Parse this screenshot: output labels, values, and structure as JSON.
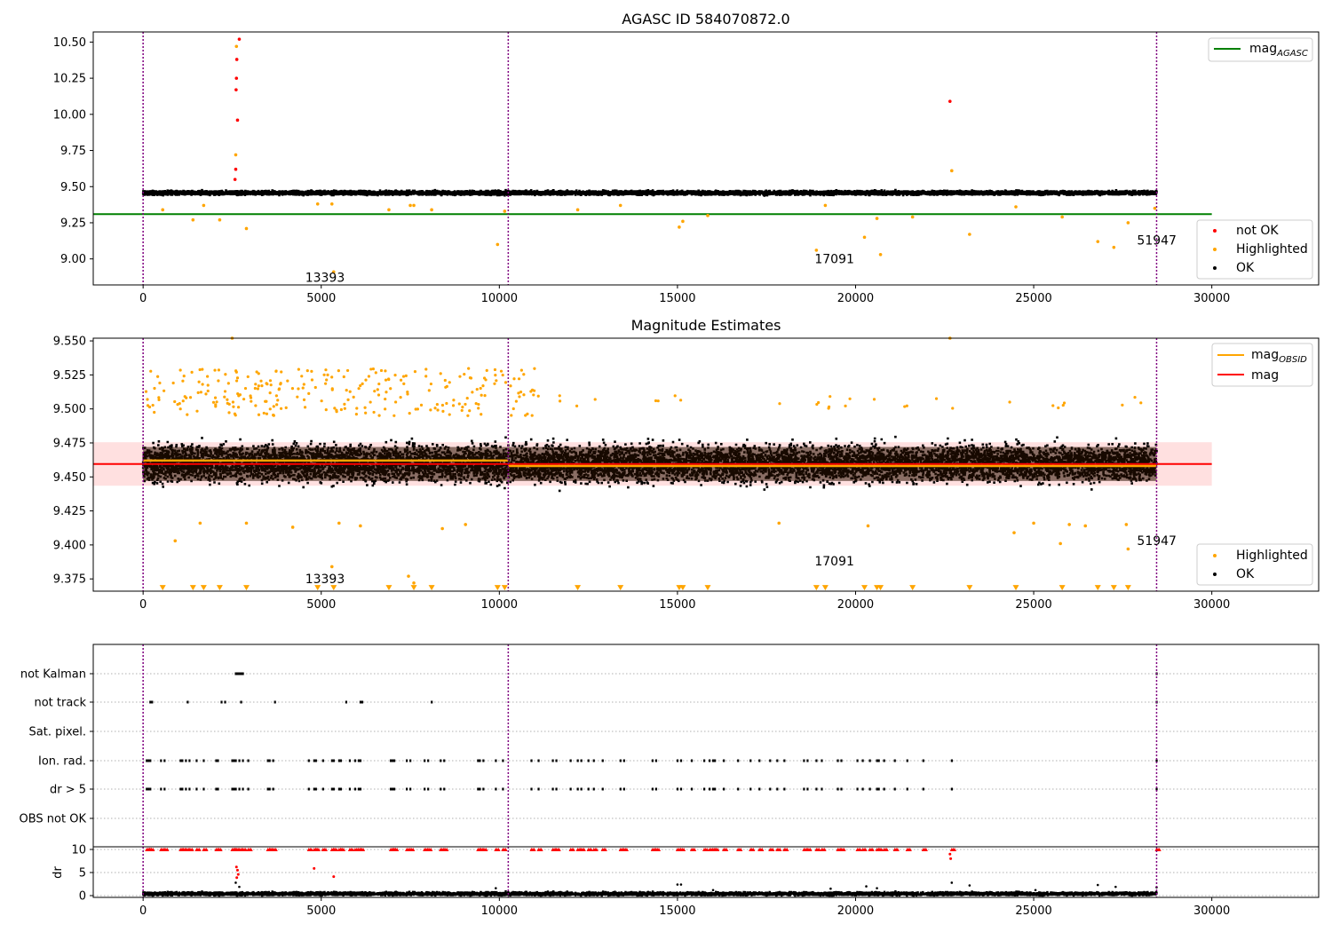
{
  "chart_data": [
    {
      "type": "scatter",
      "title": "AGASC ID 584070872.0",
      "xlim": [
        -1400,
        33000
      ],
      "ylim": [
        8.82,
        10.57
      ],
      "xticks": [
        0,
        5000,
        10000,
        15000,
        20000,
        25000,
        30000
      ],
      "yticks": [
        9.0,
        9.25,
        9.5,
        9.75,
        10.0,
        10.25,
        10.5
      ],
      "ytick_labels": [
        "9.00",
        "9.25",
        "9.50",
        "9.75",
        "10.00",
        "10.25",
        "10.50"
      ],
      "vlines": [
        0,
        10250,
        28450
      ],
      "reference_line": {
        "name": "mag_AGASC",
        "label_main": "mag",
        "label_sub": "AGASC",
        "y": 9.31,
        "x_range": [
          -1400,
          30000
        ],
        "color": "#008000"
      },
      "band": {
        "center": 9.463,
        "half_width": 0.013
      },
      "annotations": [
        {
          "text": "13393",
          "x": 4550,
          "y": 8.84
        },
        {
          "text": "17091",
          "x": 18850,
          "y": 8.97
        },
        {
          "text": "51947",
          "x": 27900,
          "y": 9.1
        }
      ],
      "legend_position": "top-right",
      "legend_top": [
        {
          "label_main": "mag",
          "label_sub": "AGASC",
          "color": "#008000",
          "kind": "line"
        }
      ],
      "legend_bottom": [
        {
          "label": "not OK",
          "color": "#ff0000",
          "kind": "dot"
        },
        {
          "label": "Highlighted",
          "color": "#ffa500",
          "kind": "dot"
        },
        {
          "label": "OK",
          "color": "#000000",
          "kind": "dot"
        }
      ],
      "series": [
        {
          "name": "not OK",
          "color": "#ff0000",
          "points": [
            [
              2630,
              10.38
            ],
            [
              2620,
              10.25
            ],
            [
              2610,
              10.17
            ],
            [
              2650,
              9.96
            ],
            [
              2700,
              10.52
            ],
            [
              2600,
              9.62
            ],
            [
              2580,
              9.55
            ],
            [
              22650,
              10.09
            ]
          ]
        },
        {
          "name": "Highlighted",
          "color": "#ffa500",
          "points": [
            [
              2620,
              10.47
            ],
            [
              2600,
              9.72
            ],
            [
              550,
              9.34
            ],
            [
              1400,
              9.27
            ],
            [
              1700,
              9.37
            ],
            [
              2150,
              9.27
            ],
            [
              2900,
              9.21
            ],
            [
              4900,
              9.38
            ],
            [
              5300,
              9.38
            ],
            [
              5350,
              8.91
            ],
            [
              6900,
              9.34
            ],
            [
              7500,
              9.37
            ],
            [
              7600,
              9.37
            ],
            [
              8100,
              9.34
            ],
            [
              9950,
              9.1
            ],
            [
              10150,
              9.33
            ],
            [
              12200,
              9.34
            ],
            [
              13400,
              9.37
            ],
            [
              15050,
              9.22
            ],
            [
              15150,
              9.26
            ],
            [
              15850,
              9.3
            ],
            [
              18900,
              9.06
            ],
            [
              19150,
              9.37
            ],
            [
              20250,
              9.15
            ],
            [
              20600,
              9.28
            ],
            [
              20700,
              9.03
            ],
            [
              21600,
              9.29
            ],
            [
              22700,
              9.61
            ],
            [
              23200,
              9.17
            ],
            [
              24500,
              9.36
            ],
            [
              25800,
              9.29
            ],
            [
              26800,
              9.12
            ],
            [
              27250,
              9.08
            ],
            [
              27650,
              9.25
            ],
            [
              28400,
              9.35
            ]
          ]
        }
      ],
      "ok_band": {
        "name": "OK",
        "x_range": [
          0,
          28450
        ],
        "center": 9.457,
        "spread": 0.022
      }
    },
    {
      "type": "scatter",
      "title": "Magnitude Estimates",
      "xlim": [
        -1400,
        33000
      ],
      "ylim": [
        9.366,
        9.552
      ],
      "xticks": [
        0,
        5000,
        10000,
        15000,
        20000,
        25000,
        30000
      ],
      "yticks": [
        9.375,
        9.4,
        9.425,
        9.45,
        9.475,
        9.5,
        9.525,
        9.55
      ],
      "ytick_labels": [
        "9.375",
        "9.400",
        "9.425",
        "9.450",
        "9.475",
        "9.500",
        "9.525",
        "9.550"
      ],
      "vlines": [
        0,
        10250,
        28450
      ],
      "band": {
        "center": 9.4595,
        "half_width": 0.016,
        "x_range": [
          -1400,
          30000
        ]
      },
      "mag_line": {
        "name": "mag",
        "y": 9.4595,
        "x_range": [
          -1400,
          30000
        ],
        "color": "#ff0000"
      },
      "mag_obsid": {
        "name": "mag_OBSID",
        "color": "#ffa500",
        "segments": [
          [
            0,
            10250,
            9.462
          ],
          [
            10250,
            28450,
            9.458
          ]
        ]
      },
      "annotations": [
        {
          "text": "13393",
          "x": 4550,
          "y": 9.372
        },
        {
          "text": "17091",
          "x": 18850,
          "y": 9.385
        },
        {
          "text": "51947",
          "x": 27900,
          "y": 9.4
        }
      ],
      "legend_position": "top-right",
      "legend_top": [
        {
          "label_main": "mag",
          "label_sub": "OBSID",
          "color": "#ffa500",
          "kind": "line"
        },
        {
          "label_main": "mag",
          "label_sub": "",
          "color": "#ff0000",
          "kind": "line"
        }
      ],
      "legend_bottom": [
        {
          "label": "Highlighted",
          "color": "#ffa500",
          "kind": "dot"
        },
        {
          "label": "OK",
          "color": "#000000",
          "kind": "dot"
        }
      ],
      "series": [
        {
          "name": "Highlighted",
          "color": "#ffa500",
          "points": [
            [
              2500,
              9.552
            ],
            [
              22650,
              9.552
            ],
            [
              900,
              9.403
            ],
            [
              1600,
              9.416
            ],
            [
              2900,
              9.416
            ],
            [
              4200,
              9.413
            ],
            [
              5300,
              9.384
            ],
            [
              5500,
              9.416
            ],
            [
              6100,
              9.414
            ],
            [
              7450,
              9.377
            ],
            [
              7600,
              9.372
            ],
            [
              8400,
              9.412
            ],
            [
              9050,
              9.415
            ],
            [
              17850,
              9.416
            ],
            [
              20350,
              9.414
            ],
            [
              24450,
              9.409
            ],
            [
              25000,
              9.416
            ],
            [
              25750,
              9.401
            ],
            [
              26000,
              9.415
            ],
            [
              26450,
              9.414
            ],
            [
              27600,
              9.415
            ],
            [
              27650,
              9.397
            ]
          ]
        },
        {
          "name": "Highlighted (below range)",
          "color": "#ffa500",
          "marker": "down-triangle",
          "x": [
            550,
            1400,
            1700,
            2150,
            2900,
            4900,
            5350,
            6900,
            7600,
            8100,
            9950,
            10150,
            12200,
            13400,
            15050,
            15150,
            15850,
            18900,
            19150,
            20250,
            20600,
            20700,
            21600,
            23200,
            24500,
            25800,
            26800,
            27250,
            27650
          ],
          "y": 9.3685
        }
      ],
      "ok_band": {
        "name": "OK",
        "x_range": [
          0,
          28450
        ],
        "center": 9.46,
        "spread": 0.022
      }
    },
    {
      "type": "scatter",
      "xlim": [
        -1400,
        33000
      ],
      "categories": [
        "not Kalman",
        "not track",
        "Sat. pixel.",
        "Ion. rad.",
        "dr > 5",
        "OBS not OK"
      ],
      "flags": {
        "not Kalman": [
          2600,
          2650,
          2700,
          2750,
          2800,
          28450
        ],
        "not track": [
          200,
          250,
          1250,
          2200,
          2300,
          2750,
          3700,
          5700,
          6100,
          6150,
          8100,
          28450
        ],
        "Sat. pixel.": [],
        "Ion. rad.": [
          100,
          150,
          200,
          500,
          600,
          1050,
          1100,
          1200,
          1300,
          1500,
          1700,
          2050,
          2100,
          2500,
          2550,
          2600,
          2700,
          2800,
          2950,
          3500,
          3550,
          3650,
          4650,
          4800,
          4850,
          5050,
          5300,
          5350,
          5500,
          5550,
          5800,
          5950,
          6050,
          6100,
          6950,
          7000,
          7050,
          7400,
          7500,
          7900,
          8000,
          8350,
          8450,
          9400,
          9450,
          9550,
          9900,
          10100,
          10900,
          11100,
          11500,
          11600,
          12000,
          12200,
          12300,
          12500,
          12650,
          12900,
          13400,
          13500,
          14300,
          14400,
          15000,
          15100,
          15400,
          15750,
          15900,
          16000,
          16050,
          16300,
          16700,
          17050,
          17300,
          17600,
          17800,
          18000,
          18550,
          18650,
          18900,
          19050,
          19500,
          19600,
          20050,
          20200,
          20400,
          20600,
          20650,
          20800,
          21100,
          21450,
          21900,
          22700,
          28450
        ],
        "dr > 5": [
          100,
          150,
          200,
          500,
          600,
          1050,
          1100,
          1200,
          1300,
          1500,
          1700,
          2050,
          2100,
          2500,
          2550,
          2600,
          2700,
          2800,
          2950,
          3500,
          3550,
          3650,
          4650,
          4800,
          4850,
          5050,
          5300,
          5350,
          5500,
          5550,
          5800,
          5950,
          6050,
          6100,
          6950,
          7000,
          7050,
          7400,
          7500,
          7900,
          8000,
          8350,
          8450,
          9400,
          9450,
          9550,
          9900,
          10100,
          10900,
          11100,
          11500,
          11600,
          12000,
          12200,
          12300,
          12500,
          12650,
          12900,
          13400,
          13500,
          14300,
          14400,
          15000,
          15100,
          15400,
          15750,
          15900,
          16000,
          16050,
          16300,
          16700,
          17050,
          17300,
          17600,
          17800,
          18000,
          18550,
          18650,
          18900,
          19050,
          19500,
          19600,
          20050,
          20200,
          20400,
          20600,
          20650,
          20800,
          21100,
          21450,
          21900,
          22700,
          28450
        ],
        "OBS not OK": []
      },
      "vlines": [
        0,
        10250,
        28450
      ]
    },
    {
      "type": "scatter",
      "xlim": [
        -1400,
        33000
      ],
      "ylim": [
        -0.5,
        10.5
      ],
      "ylabel": "dr",
      "xticks": [
        0,
        5000,
        10000,
        15000,
        20000,
        25000,
        30000
      ],
      "yticks": [
        0,
        5,
        10
      ],
      "capped_value": 10,
      "vlines": [
        0,
        10250,
        28450
      ],
      "red_points": [
        [
          4800,
          5.9
        ],
        [
          5350,
          4.1
        ],
        [
          2650,
          5.5
        ],
        [
          2620,
          6.2
        ],
        [
          2670,
          4.6
        ],
        [
          2630,
          3.9
        ],
        [
          22670,
          8.0
        ],
        [
          22650,
          9.0
        ]
      ],
      "ok_band": {
        "x_range": [
          0,
          28450
        ],
        "center": 0.4,
        "spread": 0.6
      },
      "outliers": [
        [
          2600,
          2.8
        ],
        [
          2700,
          1.9
        ],
        [
          9900,
          1.6
        ],
        [
          15000,
          2.4
        ],
        [
          15100,
          2.4
        ],
        [
          16000,
          1.2
        ],
        [
          19300,
          1.5
        ],
        [
          20300,
          2.0
        ],
        [
          20600,
          1.6
        ],
        [
          22700,
          2.8
        ],
        [
          23200,
          2.2
        ],
        [
          25050,
          1.2
        ],
        [
          26800,
          2.3
        ],
        [
          27300,
          1.9
        ],
        [
          28450,
          1.8
        ]
      ]
    }
  ]
}
